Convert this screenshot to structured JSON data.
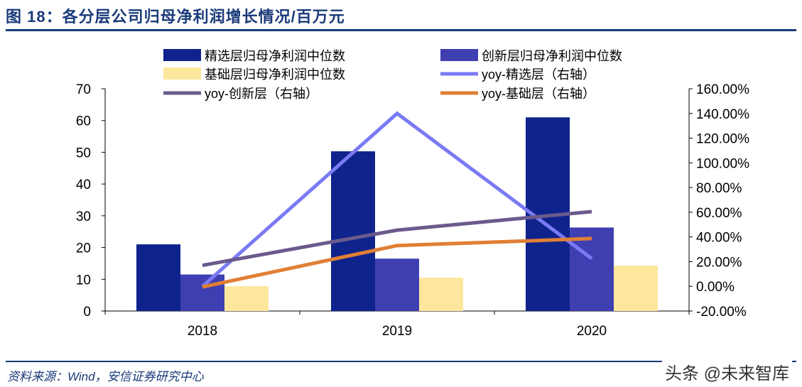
{
  "header": {
    "title": "图 18：各分层公司归母净利润增长情况/百万元"
  },
  "footer": {
    "source": "资料来源：Wind，安信证券研究中心",
    "watermark": "头条 @未来智库"
  },
  "chart_data": {
    "type": "bar+line",
    "categories": [
      "2018",
      "2019",
      "2020"
    ],
    "left_axis": {
      "ylim": [
        0,
        70
      ],
      "ticks": [
        "0",
        "10",
        "20",
        "30",
        "40",
        "50",
        "60",
        "70"
      ]
    },
    "right_axis": {
      "ylim": [
        -20,
        160
      ],
      "ticks": [
        "-20.00%",
        "0.00%",
        "20.00%",
        "40.00%",
        "60.00%",
        "80.00%",
        "100.00%",
        "120.00%",
        "140.00%",
        "160.00%"
      ]
    },
    "grid": false,
    "legend_placement": "top",
    "bar_series": [
      {
        "name": "精选层归母净利润中位数",
        "values": [
          21,
          50.3,
          61
        ],
        "color": "#0f238c"
      },
      {
        "name": "创新层归母净利润中位数",
        "values": [
          11.5,
          16.5,
          26.3
        ],
        "color": "#3f3fb2"
      },
      {
        "name": "基础层归母净利润中位数",
        "values": [
          7.8,
          10.5,
          14.3
        ],
        "color": "#fde79c"
      }
    ],
    "line_series": [
      {
        "name": "yoy-精选层（右轴）",
        "values": [
          0,
          140,
          22.5
        ],
        "color": "#7a7af5"
      },
      {
        "name": "yoy-创新层（右轴）",
        "values": [
          17,
          45.5,
          60.5
        ],
        "color": "#6a5a8c"
      },
      {
        "name": "yoy-基础层（右轴）",
        "values": [
          -0.5,
          33,
          38.7
        ],
        "color": "#e07f35"
      }
    ]
  }
}
